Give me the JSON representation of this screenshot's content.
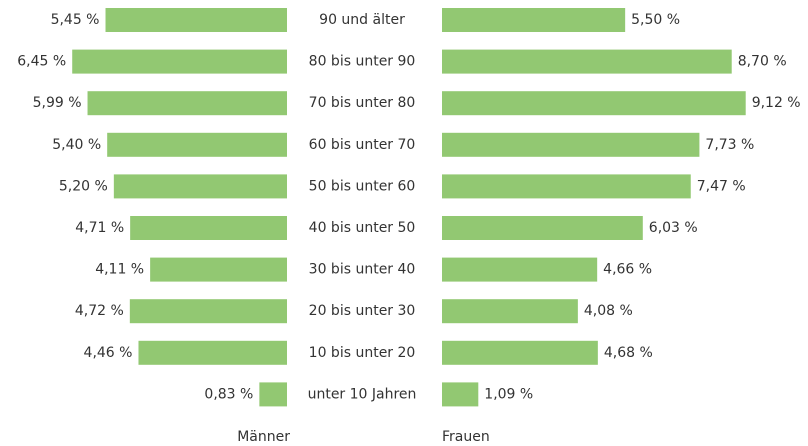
{
  "chart_data": {
    "type": "bar",
    "orientation": "butterfly",
    "categories": [
      "90 und älter",
      "80 bis unter 90",
      "70 bis unter 80",
      "60 bis unter 70",
      "50 bis unter 60",
      "40 bis unter 50",
      "30 bis unter 40",
      "20 bis unter 30",
      "10 bis unter 20",
      "unter 10 Jahren"
    ],
    "series": [
      {
        "name": "Männer",
        "color": "#92c872",
        "values": [
          5.45,
          6.45,
          5.99,
          5.4,
          5.2,
          4.71,
          4.11,
          4.72,
          4.46,
          0.83
        ],
        "value_labels": [
          "5,45 %",
          "6,45 %",
          "5,99 %",
          "5,40 %",
          "5,20 %",
          "4,71 %",
          "4,11 %",
          "4,72 %",
          "4,46 %",
          "0,83 %"
        ]
      },
      {
        "name": "Frauen",
        "color": "#92c872",
        "values": [
          5.5,
          8.7,
          9.12,
          7.73,
          7.47,
          6.03,
          4.66,
          4.08,
          4.68,
          1.09
        ],
        "value_labels": [
          "5,50 %",
          "8,70 %",
          "9,12 %",
          "7,73 %",
          "7,47 %",
          "6,03 %",
          "4,66 %",
          "4,08 %",
          "4,68 %",
          "1,09 %"
        ]
      }
    ]
  }
}
